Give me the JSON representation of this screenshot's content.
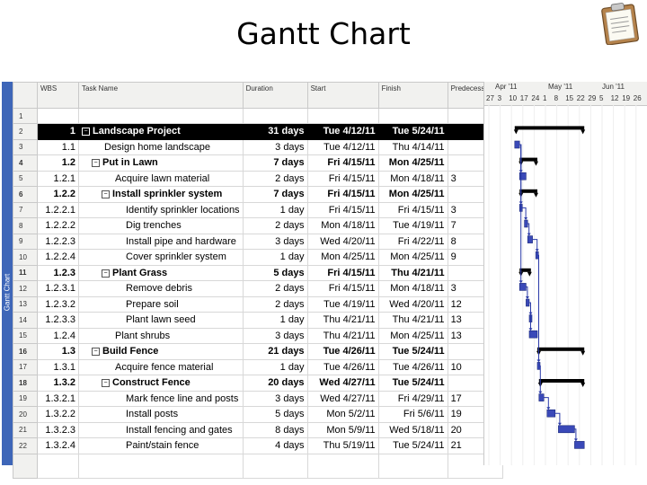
{
  "slide": {
    "title": "Gantt Chart",
    "clipboard_icon": "clipboard-icon"
  },
  "sidebar": {
    "view_label": "Gantt Chart"
  },
  "table": {
    "headers": {
      "wbs": "WBS",
      "name": "Task Name",
      "duration": "Duration",
      "start": "Start",
      "finish": "Finish",
      "predecessors": "Predecessors"
    },
    "rows": [
      {
        "id": "1",
        "wbs": "",
        "name": "",
        "duration": "",
        "start": "",
        "finish": "",
        "pred": ""
      },
      {
        "id": "2",
        "wbs": "1",
        "name": "Landscape Project",
        "duration": "31 days",
        "start": "Tue 4/12/11",
        "finish": "Tue 5/24/11",
        "pred": ""
      },
      {
        "id": "3",
        "wbs": "1.1",
        "name": "Design home landscape",
        "duration": "3 days",
        "start": "Tue 4/12/11",
        "finish": "Thu 4/14/11",
        "pred": ""
      },
      {
        "id": "4",
        "wbs": "1.2",
        "name": "Put in Lawn",
        "duration": "7 days",
        "start": "Fri 4/15/11",
        "finish": "Mon 4/25/11",
        "pred": ""
      },
      {
        "id": "5",
        "wbs": "1.2.1",
        "name": "Acquire lawn material",
        "duration": "2 days",
        "start": "Fri 4/15/11",
        "finish": "Mon 4/18/11",
        "pred": "3"
      },
      {
        "id": "6",
        "wbs": "1.2.2",
        "name": "Install sprinkler system",
        "duration": "7 days",
        "start": "Fri 4/15/11",
        "finish": "Mon 4/25/11",
        "pred": ""
      },
      {
        "id": "7",
        "wbs": "1.2.2.1",
        "name": "Identify sprinkler locations",
        "duration": "1 day",
        "start": "Fri 4/15/11",
        "finish": "Fri 4/15/11",
        "pred": "3"
      },
      {
        "id": "8",
        "wbs": "1.2.2.2",
        "name": "Dig trenches",
        "duration": "2 days",
        "start": "Mon 4/18/11",
        "finish": "Tue 4/19/11",
        "pred": "7"
      },
      {
        "id": "9",
        "wbs": "1.2.2.3",
        "name": "Install pipe and hardware",
        "duration": "3 days",
        "start": "Wed 4/20/11",
        "finish": "Fri 4/22/11",
        "pred": "8"
      },
      {
        "id": "10",
        "wbs": "1.2.2.4",
        "name": "Cover sprinkler system",
        "duration": "1 day",
        "start": "Mon 4/25/11",
        "finish": "Mon 4/25/11",
        "pred": "9"
      },
      {
        "id": "11",
        "wbs": "1.2.3",
        "name": "Plant Grass",
        "duration": "5 days",
        "start": "Fri 4/15/11",
        "finish": "Thu 4/21/11",
        "pred": ""
      },
      {
        "id": "12",
        "wbs": "1.2.3.1",
        "name": "Remove debris",
        "duration": "2 days",
        "start": "Fri 4/15/11",
        "finish": "Mon 4/18/11",
        "pred": "3"
      },
      {
        "id": "13",
        "wbs": "1.2.3.2",
        "name": "Prepare soil",
        "duration": "2 days",
        "start": "Tue 4/19/11",
        "finish": "Wed 4/20/11",
        "pred": "12"
      },
      {
        "id": "14",
        "wbs": "1.2.3.3",
        "name": "Plant lawn seed",
        "duration": "1 day",
        "start": "Thu 4/21/11",
        "finish": "Thu 4/21/11",
        "pred": "13"
      },
      {
        "id": "15",
        "wbs": "1.2.4",
        "name": "Plant shrubs",
        "duration": "3 days",
        "start": "Thu 4/21/11",
        "finish": "Mon 4/25/11",
        "pred": "13"
      },
      {
        "id": "16",
        "wbs": "1.3",
        "name": "Build Fence",
        "duration": "21 days",
        "start": "Tue 4/26/11",
        "finish": "Tue 5/24/11",
        "pred": ""
      },
      {
        "id": "17",
        "wbs": "1.3.1",
        "name": "Acquire fence material",
        "duration": "1 day",
        "start": "Tue 4/26/11",
        "finish": "Tue 4/26/11",
        "pred": "10"
      },
      {
        "id": "18",
        "wbs": "1.3.2",
        "name": "Construct Fence",
        "duration": "20 days",
        "start": "Wed 4/27/11",
        "finish": "Tue 5/24/11",
        "pred": ""
      },
      {
        "id": "19",
        "wbs": "1.3.2.1",
        "name": "Mark fence line and posts",
        "duration": "3 days",
        "start": "Wed 4/27/11",
        "finish": "Fri 4/29/11",
        "pred": "17"
      },
      {
        "id": "20",
        "wbs": "1.3.2.2",
        "name": "Install posts",
        "duration": "5 days",
        "start": "Mon 5/2/11",
        "finish": "Fri 5/6/11",
        "pred": "19"
      },
      {
        "id": "21",
        "wbs": "1.3.2.3",
        "name": "Install fencing and gates",
        "duration": "8 days",
        "start": "Mon 5/9/11",
        "finish": "Wed 5/18/11",
        "pred": "20"
      },
      {
        "id": "22",
        "wbs": "1.3.2.4",
        "name": "Paint/stain fence",
        "duration": "4 days",
        "start": "Thu 5/19/11",
        "finish": "Tue 5/24/11",
        "pred": "21"
      }
    ]
  },
  "timescale": {
    "months": [
      "Apr '11",
      "May '11",
      "Jun '11"
    ],
    "days": [
      "27",
      "3",
      "10",
      "17",
      "24",
      "1",
      "8",
      "15",
      "22",
      "29",
      "5",
      "12",
      "19",
      "26"
    ]
  },
  "chart_data": {
    "type": "gantt",
    "origin_date": "2011-03-27",
    "tasks": [
      {
        "row": 2,
        "kind": "summary",
        "start": "2011-04-12",
        "finish": "2011-05-24"
      },
      {
        "row": 3,
        "kind": "task",
        "start": "2011-04-12",
        "finish": "2011-04-14"
      },
      {
        "row": 4,
        "kind": "summary",
        "start": "2011-04-15",
        "finish": "2011-04-25"
      },
      {
        "row": 5,
        "kind": "task",
        "start": "2011-04-15",
        "finish": "2011-04-18"
      },
      {
        "row": 6,
        "kind": "summary",
        "start": "2011-04-15",
        "finish": "2011-04-25"
      },
      {
        "row": 7,
        "kind": "task",
        "start": "2011-04-15",
        "finish": "2011-04-15"
      },
      {
        "row": 8,
        "kind": "task",
        "start": "2011-04-18",
        "finish": "2011-04-19"
      },
      {
        "row": 9,
        "kind": "task",
        "start": "2011-04-20",
        "finish": "2011-04-22"
      },
      {
        "row": 10,
        "kind": "task",
        "start": "2011-04-25",
        "finish": "2011-04-25"
      },
      {
        "row": 11,
        "kind": "summary",
        "start": "2011-04-15",
        "finish": "2011-04-21"
      },
      {
        "row": 12,
        "kind": "task",
        "start": "2011-04-15",
        "finish": "2011-04-18"
      },
      {
        "row": 13,
        "kind": "task",
        "start": "2011-04-19",
        "finish": "2011-04-20"
      },
      {
        "row": 14,
        "kind": "task",
        "start": "2011-04-21",
        "finish": "2011-04-21"
      },
      {
        "row": 15,
        "kind": "task",
        "start": "2011-04-21",
        "finish": "2011-04-25"
      },
      {
        "row": 16,
        "kind": "summary",
        "start": "2011-04-26",
        "finish": "2011-05-24"
      },
      {
        "row": 17,
        "kind": "task",
        "start": "2011-04-26",
        "finish": "2011-04-26"
      },
      {
        "row": 18,
        "kind": "summary",
        "start": "2011-04-27",
        "finish": "2011-05-24"
      },
      {
        "row": 19,
        "kind": "task",
        "start": "2011-04-27",
        "finish": "2011-04-29"
      },
      {
        "row": 20,
        "kind": "task",
        "start": "2011-05-02",
        "finish": "2011-05-06"
      },
      {
        "row": 21,
        "kind": "task",
        "start": "2011-05-09",
        "finish": "2011-05-18"
      },
      {
        "row": 22,
        "kind": "task",
        "start": "2011-05-19",
        "finish": "2011-05-24"
      }
    ],
    "colors": {
      "task_fill": "#3a49b8",
      "summary": "#000000",
      "link": "#2a3aa8"
    }
  }
}
